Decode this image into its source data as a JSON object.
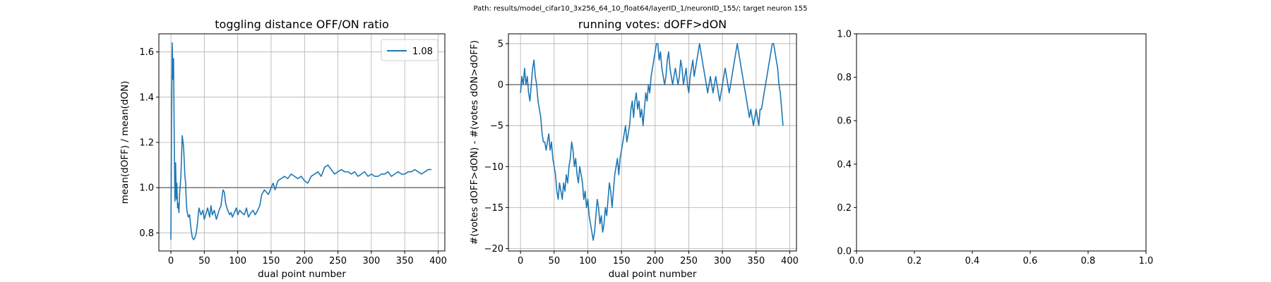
{
  "suptitle": "Path: results/model_cifar10_3x256_64_10_float64/layerID_1/neuronID_155/; target neuron 155",
  "colors": {
    "series": "#1f77b4",
    "refline": "#808080",
    "grid": "#b0b0b0",
    "axis": "#000000"
  },
  "chart_data": [
    {
      "type": "line",
      "title": "toggling distance OFF/ON ratio",
      "xlabel": "dual point number",
      "ylabel": "mean(dOFF) / mean(dON)",
      "xlim": [
        -18,
        410
      ],
      "ylim": [
        0.72,
        1.68
      ],
      "xticks": [
        0,
        50,
        100,
        150,
        200,
        250,
        300,
        350,
        400
      ],
      "yticks": [
        0.8,
        1.0,
        1.2,
        1.4,
        1.6
      ],
      "ytick_labels": [
        "0.8",
        "1.0",
        "1.2",
        "1.4",
        "1.6"
      ],
      "grid": true,
      "reference_line": 1.0,
      "legend": {
        "position": "top-right",
        "entries": [
          "1.08"
        ]
      },
      "series": [
        {
          "name": "1.08",
          "x": [
            0,
            1,
            2,
            3,
            4,
            5,
            6,
            7,
            8,
            9,
            10,
            11,
            12,
            13,
            15,
            17,
            19,
            21,
            22,
            23,
            24,
            26,
            28,
            30,
            32,
            34,
            36,
            38,
            40,
            42,
            45,
            48,
            50,
            52,
            55,
            58,
            60,
            62,
            65,
            68,
            70,
            72,
            75,
            78,
            80,
            82,
            85,
            88,
            90,
            92,
            95,
            98,
            100,
            103,
            106,
            110,
            113,
            116,
            120,
            123,
            126,
            130,
            133,
            136,
            140,
            143,
            146,
            150,
            153,
            156,
            160,
            165,
            170,
            175,
            180,
            185,
            190,
            195,
            200,
            205,
            210,
            215,
            220,
            225,
            230,
            235,
            240,
            245,
            250,
            255,
            260,
            265,
            270,
            275,
            280,
            285,
            290,
            295,
            300,
            305,
            310,
            315,
            320,
            325,
            330,
            335,
            340,
            345,
            350,
            355,
            360,
            365,
            370,
            375,
            380,
            385,
            390
          ],
          "y": [
            0.77,
            1.3,
            1.64,
            1.48,
            1.57,
            1.2,
            0.94,
            1.11,
            0.95,
            1.02,
            0.91,
            0.93,
            0.89,
            0.97,
            1.05,
            1.23,
            1.18,
            1.05,
            1.02,
            0.94,
            0.9,
            0.87,
            0.88,
            0.82,
            0.78,
            0.77,
            0.78,
            0.8,
            0.85,
            0.91,
            0.88,
            0.9,
            0.86,
            0.88,
            0.91,
            0.87,
            0.92,
            0.88,
            0.9,
            0.86,
            0.88,
            0.9,
            0.92,
            0.99,
            0.98,
            0.93,
            0.9,
            0.88,
            0.89,
            0.87,
            0.89,
            0.91,
            0.88,
            0.9,
            0.89,
            0.88,
            0.91,
            0.87,
            0.89,
            0.9,
            0.88,
            0.9,
            0.92,
            0.97,
            0.99,
            0.98,
            0.97,
            1.0,
            1.02,
            0.99,
            1.03,
            1.04,
            1.05,
            1.04,
            1.06,
            1.05,
            1.04,
            1.05,
            1.03,
            1.02,
            1.05,
            1.06,
            1.07,
            1.05,
            1.09,
            1.1,
            1.08,
            1.06,
            1.07,
            1.08,
            1.07,
            1.07,
            1.06,
            1.07,
            1.05,
            1.06,
            1.07,
            1.05,
            1.06,
            1.05,
            1.05,
            1.06,
            1.06,
            1.07,
            1.05,
            1.06,
            1.07,
            1.06,
            1.06,
            1.07,
            1.07,
            1.08,
            1.07,
            1.06,
            1.07,
            1.08,
            1.08
          ]
        }
      ]
    },
    {
      "type": "line",
      "title": "running votes: dOFF>dON",
      "xlabel": "dual point number",
      "ylabel": "#(votes dOFF>dON) - #(votes dON>dOFF)",
      "xlim": [
        -18,
        410
      ],
      "ylim": [
        -20.3,
        6.2
      ],
      "xticks": [
        0,
        50,
        100,
        150,
        200,
        250,
        300,
        350,
        400
      ],
      "yticks": [
        -20,
        -15,
        -10,
        -5,
        0,
        5
      ],
      "ytick_labels": [
        "−20",
        "−15",
        "−10",
        "−5",
        "0",
        "5"
      ],
      "grid": true,
      "reference_line": 0,
      "series": [
        {
          "name": "",
          "x": [
            0,
            2,
            4,
            6,
            8,
            10,
            12,
            14,
            16,
            18,
            20,
            22,
            24,
            26,
            28,
            30,
            32,
            34,
            36,
            38,
            40,
            42,
            44,
            46,
            48,
            50,
            52,
            54,
            56,
            58,
            60,
            62,
            64,
            66,
            68,
            70,
            72,
            74,
            76,
            78,
            80,
            82,
            84,
            86,
            88,
            90,
            92,
            94,
            96,
            98,
            100,
            102,
            104,
            106,
            108,
            110,
            112,
            114,
            116,
            118,
            120,
            122,
            124,
            126,
            128,
            130,
            132,
            134,
            136,
            138,
            140,
            142,
            144,
            146,
            148,
            150,
            152,
            154,
            156,
            158,
            160,
            162,
            164,
            166,
            168,
            170,
            172,
            174,
            176,
            178,
            180,
            182,
            184,
            186,
            188,
            190,
            192,
            194,
            196,
            198,
            200,
            202,
            204,
            206,
            208,
            210,
            212,
            214,
            216,
            218,
            220,
            222,
            224,
            226,
            228,
            230,
            232,
            234,
            236,
            238,
            240,
            242,
            244,
            246,
            248,
            250,
            252,
            254,
            256,
            258,
            260,
            262,
            264,
            266,
            268,
            270,
            272,
            274,
            276,
            278,
            280,
            282,
            284,
            286,
            288,
            290,
            292,
            294,
            296,
            298,
            300,
            302,
            304,
            306,
            308,
            310,
            312,
            314,
            316,
            318,
            320,
            322,
            324,
            326,
            328,
            330,
            332,
            334,
            336,
            338,
            340,
            342,
            344,
            346,
            348,
            350,
            352,
            354,
            356,
            358,
            360,
            362,
            364,
            366,
            368,
            370,
            372,
            374,
            376,
            378,
            380,
            382,
            384,
            386,
            388,
            390
          ],
          "y": [
            -1,
            1,
            0,
            2,
            0,
            1,
            -1,
            -2,
            0,
            2,
            3,
            1,
            0,
            -2,
            -3,
            -4,
            -6,
            -7,
            -7,
            -8,
            -7,
            -6,
            -8,
            -7,
            -9,
            -10,
            -11,
            -13,
            -14,
            -12,
            -13,
            -14,
            -12,
            -13,
            -11,
            -12,
            -10,
            -9,
            -7,
            -8,
            -10,
            -9,
            -11,
            -12,
            -10,
            -11,
            -12,
            -14,
            -13,
            -15,
            -14,
            -16,
            -17,
            -18,
            -19,
            -18,
            -16,
            -14,
            -15,
            -17,
            -16,
            -18,
            -17,
            -15,
            -16,
            -14,
            -12,
            -13,
            -15,
            -13,
            -11,
            -10,
            -9,
            -11,
            -9,
            -8,
            -7,
            -6,
            -5,
            -7,
            -6,
            -5,
            -3,
            -2,
            -4,
            -2,
            -1,
            -3,
            -2,
            -4,
            -3,
            -5,
            -3,
            -1,
            -2,
            0,
            -1,
            1,
            2,
            3,
            4,
            5,
            5,
            3,
            4,
            2,
            1,
            0,
            1,
            3,
            4,
            2,
            1,
            0,
            1,
            2,
            1,
            0,
            1,
            3,
            2,
            0,
            1,
            2,
            0,
            -1,
            1,
            2,
            3,
            1,
            2,
            3,
            4,
            5,
            4,
            3,
            2,
            1,
            0,
            -1,
            0,
            1,
            0,
            -1,
            0,
            1,
            0,
            -1,
            -2,
            -1,
            0,
            1,
            2,
            1,
            0,
            -1,
            0,
            1,
            2,
            3,
            4,
            5,
            4,
            3,
            2,
            1,
            0,
            -1,
            -2,
            -3,
            -4,
            -3,
            -4,
            -5,
            -4,
            -3,
            -4,
            -5,
            -3,
            -3,
            -2,
            -1,
            0,
            1,
            2,
            3,
            4,
            5,
            5,
            4,
            3,
            2,
            0,
            -1,
            -3,
            -5
          ]
        }
      ]
    },
    {
      "type": "line",
      "title": "",
      "xlabel": "",
      "ylabel": "",
      "xlim": [
        0,
        1
      ],
      "ylim": [
        0,
        1
      ],
      "xticks": [
        0,
        0.2,
        0.4,
        0.6,
        0.8,
        1.0
      ],
      "yticks": [
        0,
        0.2,
        0.4,
        0.6,
        0.8,
        1.0
      ],
      "xtick_labels": [
        "0.0",
        "0.2",
        "0.4",
        "0.6",
        "0.8",
        "1.0"
      ],
      "ytick_labels": [
        "0.0",
        "0.2",
        "0.4",
        "0.6",
        "0.8",
        "1.0"
      ],
      "grid": false,
      "series": []
    }
  ]
}
